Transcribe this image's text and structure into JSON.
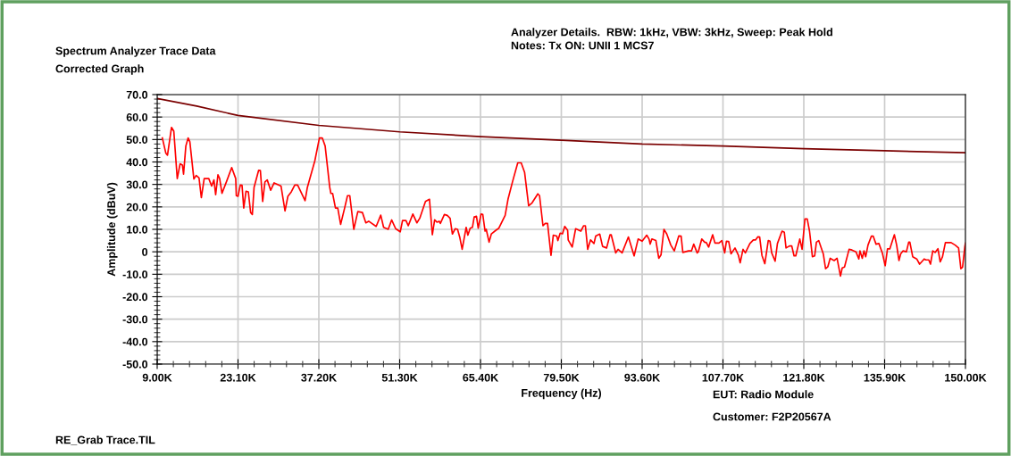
{
  "chart_data": {
    "type": "line",
    "title": "Spectrum Analyzer Trace Data",
    "subtitle": "Corrected Graph",
    "xlabel": "Frequency (Hz)",
    "ylabel": "Amplitude (dBuV)",
    "annotations": [
      "Analyzer Details.  RBW: 1kHz, VBW: 3kHz, Sweep: Peak Hold",
      "Notes: Tx ON: UNII 1 MCS7",
      "EUT: Radio Module",
      "Customer: F2P20567A",
      "RE_Grab Trace.TIL"
    ],
    "xlim": [
      9,
      150
    ],
    "xticks": [
      {
        "value": 9,
        "label": "9.00K"
      },
      {
        "value": 23.1,
        "label": "23.10K"
      },
      {
        "value": 37.2,
        "label": "37.20K"
      },
      {
        "value": 51.3,
        "label": "51.30K"
      },
      {
        "value": 65.4,
        "label": "65.40K"
      },
      {
        "value": 79.5,
        "label": "79.50K"
      },
      {
        "value": 93.6,
        "label": "93.60K"
      },
      {
        "value": 107.7,
        "label": "107.70K"
      },
      {
        "value": 121.8,
        "label": "121.80K"
      },
      {
        "value": 135.9,
        "label": "135.90K"
      },
      {
        "value": 150,
        "label": "150.00K"
      }
    ],
    "ylim": [
      -50,
      70
    ],
    "yticks": [
      {
        "value": -50,
        "label": "-50.0"
      },
      {
        "value": -40,
        "label": "-40.0"
      },
      {
        "value": -30,
        "label": "-30.0"
      },
      {
        "value": -20,
        "label": "-20.0"
      },
      {
        "value": -10,
        "label": "-10.0"
      },
      0,
      {
        "value": 10,
        "label": "10.0"
      },
      {
        "value": 20,
        "label": "20.0"
      },
      {
        "value": 30,
        "label": "30.0"
      },
      {
        "value": 40,
        "label": "40.0"
      },
      {
        "value": 50,
        "label": "50.0"
      },
      {
        "value": 60,
        "label": "60.0"
      },
      {
        "value": 70,
        "label": "70.0"
      }
    ],
    "grid": true,
    "legend": false,
    "series": [
      {
        "color": "#7b0000",
        "x": [
          9,
          15.9,
          23.1,
          37.2,
          51.3,
          65.4,
          79.5,
          93.6,
          107.7,
          121.8,
          135.9,
          150
        ],
        "values": [
          68.3,
          64.9,
          60.7,
          56.3,
          53.4,
          51.3,
          49.7,
          48,
          47.1,
          45.9,
          45,
          44.1
        ]
      },
      {
        "color": "#ff0000",
        "x": [
          9.9,
          10.5,
          10.8,
          11.5,
          11.9,
          12.5,
          13.0,
          13.4,
          13.6,
          14.0,
          14.4,
          14.7,
          15.4,
          15.8,
          16.3,
          16.7,
          17.2,
          18,
          18.5,
          18.9,
          19.2,
          19.6,
          19.9,
          20.3,
          21.1,
          22,
          22.7,
          22.8,
          23.1,
          23.5,
          23.8,
          24.1,
          24.5,
          24.9,
          25.3,
          25.6,
          25.9,
          26.7,
          27,
          27.4,
          27.8,
          28.2,
          28.8,
          29.4,
          30.6,
          31.3,
          31.8,
          32.4,
          33,
          33.5,
          34.8,
          35.2,
          36.5,
          37.3,
          37.8,
          38.3,
          39.1,
          39.3,
          39.6,
          40.1,
          40.5,
          41,
          41.7,
          42.2,
          42.6,
          43.3,
          44,
          44.8,
          45.4,
          45.9,
          47.2,
          48,
          48.5,
          49.3,
          49.9,
          50.6,
          51.4,
          51.8,
          52.4,
          52.8,
          53.6,
          54.3,
          54.8,
          55.8,
          56.5,
          57,
          57.4,
          57.8,
          58.2,
          58.4,
          59.1,
          59.6,
          60.1,
          60.5,
          61,
          61.4,
          61.8,
          62.2,
          62.9,
          63.2,
          63.6,
          64,
          64.3,
          64.7,
          65,
          65.5,
          65.8,
          66.2,
          66.4,
          66.9,
          67.3,
          68.1,
          68.6,
          69.7,
          70.2,
          71,
          71.9,
          72.5,
          73.1,
          73.8,
          74.4,
          75.4,
          75.7,
          76.3,
          76.7,
          77.1,
          77.7,
          78.1,
          78.7,
          78.9,
          79.3,
          79.7,
          80.1,
          80.6,
          80.7,
          81.4,
          82,
          82.9,
          83.4,
          83.7,
          84.1,
          84.6,
          85.2,
          85.5,
          86.2,
          86.7,
          87.4,
          88,
          88.2,
          89,
          89.4,
          90.1,
          91.2,
          92.2,
          92.9,
          93.6,
          94.4,
          94.8,
          95,
          95.3,
          96,
          96.5,
          96.9,
          97.4,
          97.9,
          98.6,
          99.2,
          100,
          100.4,
          100.7,
          101.7,
          102.2,
          102.6,
          103.2,
          103.4,
          104,
          104.5,
          104.8,
          105.2,
          105.9,
          106.3,
          107,
          107.5,
          108,
          108.3,
          108.7,
          109.1,
          109.8,
          110.4,
          110.7,
          111.2,
          111.6,
          112.4,
          113,
          113.4,
          113.8,
          114.1,
          114.5,
          115,
          115.6,
          115.9,
          116.2,
          116.8,
          117.2,
          118,
          118.4,
          118.7,
          119.3,
          119.7,
          120.1,
          120.4,
          121.1,
          121.5,
          122,
          122.4,
          122.8,
          123.3,
          123.7,
          124,
          124.4,
          125.2,
          125.6,
          126,
          126.4,
          127.1,
          127.6,
          128.2,
          128.5,
          128.9,
          129.7,
          130.2,
          130.9,
          131.4,
          131.6,
          132,
          132.3,
          132.6,
          133,
          133.6,
          133.9,
          134.4,
          134.9,
          135.5,
          136,
          136.4,
          136.8,
          137.6,
          138,
          138.4,
          138.7,
          139.1,
          139.7,
          140.1,
          140.3,
          140.8,
          141.5,
          142,
          142.8,
          143.1,
          143.6,
          143.9,
          144.3,
          144.7,
          145.2,
          145.6,
          146,
          146.5,
          147.5,
          148.2,
          148.8,
          149.2,
          149.5,
          149.9,
          150
        ],
        "values": [
          50.7,
          44,
          43,
          55.4,
          53.7,
          32.6,
          39.2,
          38.6,
          34.6,
          47.1,
          50.7,
          49,
          32.4,
          34,
          32.9,
          24.1,
          32.6,
          32.6,
          29.3,
          32,
          25.4,
          34.3,
          32.6,
          26,
          31.3,
          37.5,
          32.6,
          25,
          24.7,
          29.7,
          29.6,
          19.5,
          27,
          26.7,
          17.5,
          16.6,
          28.7,
          36.3,
          36.2,
          22.4,
          31.1,
          32,
          27.4,
          30.7,
          29.3,
          18.2,
          24.7,
          26.7,
          29.7,
          29.7,
          22.8,
          28.7,
          40.5,
          50.7,
          50.7,
          47.1,
          28.7,
          26,
          26,
          19.5,
          19.5,
          12.2,
          19.5,
          25,
          25,
          10,
          17.9,
          17.5,
          12.9,
          13.6,
          11.3,
          16.3,
          10.9,
          10,
          14.2,
          10.3,
          8.9,
          13.9,
          13.9,
          11.6,
          16.8,
          12.9,
          14.9,
          22.4,
          23.4,
          7.6,
          14.2,
          13.2,
          13.6,
          12.6,
          16.6,
          16.2,
          14.9,
          7.9,
          10.3,
          10,
          6.3,
          1.1,
          10.9,
          7.4,
          10.5,
          10.9,
          15.5,
          15.8,
          10.5,
          16.8,
          16.6,
          9.2,
          10,
          4.3,
          8,
          9.6,
          10.5,
          16.2,
          23.4,
          31.3,
          39.6,
          39.6,
          35.3,
          20.5,
          21.8,
          25.8,
          25,
          11.6,
          12.6,
          12.6,
          -1.6,
          7.4,
          7,
          5,
          8.3,
          8,
          11.3,
          9.6,
          5.3,
          2.1,
          10.3,
          9.2,
          11.6,
          11.6,
          1.1,
          5.3,
          3.7,
          7,
          7.9,
          2.4,
          1.7,
          7.6,
          7.6,
          -0.5,
          1.1,
          -0.5,
          6.6,
          -1.8,
          5.7,
          4.7,
          7.4,
          5.7,
          3.4,
          5.7,
          5,
          -2.9,
          -1.3,
          10,
          7.9,
          3,
          0.4,
          7.1,
          7,
          -0.3,
          0.4,
          0.4,
          3.4,
          -0.5,
          0,
          5.7,
          4.3,
          4.1,
          2.1,
          7.6,
          3.9,
          3.9,
          5,
          -0.5,
          4.7,
          4.6,
          -0.9,
          1.7,
          -1.6,
          -4.9,
          1.1,
          -0.5,
          3.7,
          5.3,
          5.3,
          6.7,
          6.6,
          -1.6,
          -5.3,
          5,
          4.7,
          -0.5,
          -4.2,
          3.7,
          9.2,
          8.7,
          1.7,
          2.6,
          2.6,
          -1.8,
          -1.8,
          5.7,
          1.1,
          14.6,
          14.6,
          9.2,
          -2.2,
          -1.8,
          4.3,
          5,
          -0.9,
          -7.5,
          -6.6,
          -2.9,
          -3.9,
          -2.9,
          -10.8,
          -7.2,
          -6.8,
          1.1,
          0.8,
          0,
          -3.2,
          0.4,
          -2.9,
          0.4,
          -2.2,
          3,
          7,
          7,
          3.4,
          3.7,
          -0.5,
          -6.2,
          1.3,
          1.3,
          7.6,
          3,
          -3.9,
          -0.9,
          0.4,
          0,
          4.3,
          4.3,
          -2.2,
          -3.2,
          -5.5,
          -3.2,
          -3.6,
          -3.6,
          -5.5,
          0.4,
          -0.3,
          1.4,
          -4.5,
          -2.2,
          4.1,
          4.1,
          3,
          1.7,
          -7.5,
          -6.8,
          2.4,
          3.9
        ]
      }
    ]
  }
}
